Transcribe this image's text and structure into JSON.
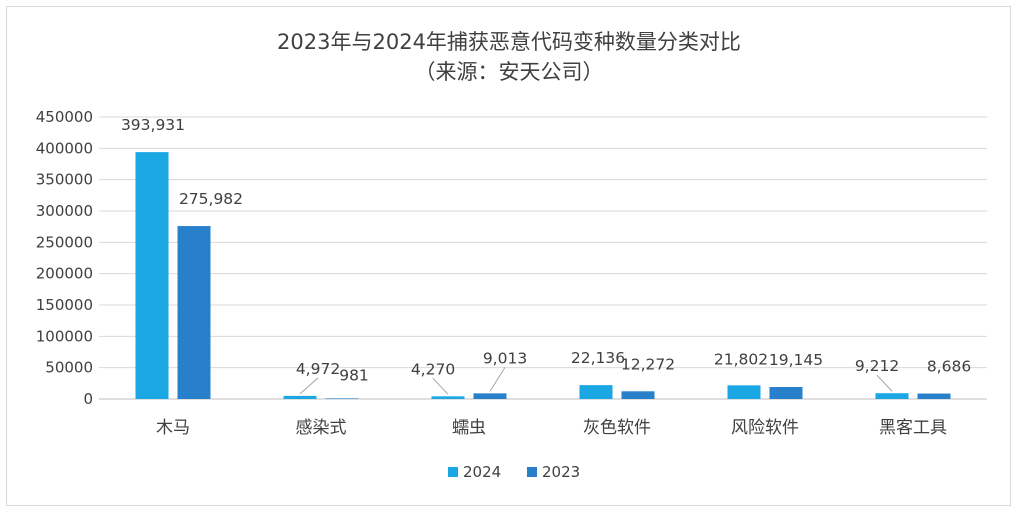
{
  "chart_data": {
    "type": "bar",
    "title": "2023年与2024年捕获恶意代码变种数量分类对比",
    "subtitle": "（来源：安天公司）",
    "categories": [
      "木马",
      "感染式",
      "蠕虫",
      "灰色软件",
      "风险软件",
      "黑客工具"
    ],
    "series": [
      {
        "name": "2024",
        "color": "#1aa7e4",
        "values": [
          393931,
          4972,
          4270,
          22136,
          21802,
          9212
        ]
      },
      {
        "name": "2023",
        "color": "#2880ca",
        "values": [
          275982,
          981,
          9013,
          12272,
          19145,
          8686
        ]
      }
    ],
    "data_labels": [
      [
        "393,931",
        "4,972",
        "4,270",
        "22,136",
        "21,802",
        "9,212"
      ],
      [
        "275,982",
        "981",
        "9,013",
        "12,272",
        "19,145",
        "8,686"
      ]
    ],
    "ylim": [
      0,
      450000
    ],
    "yticks": [
      "0",
      "50000",
      "100000",
      "150000",
      "200000",
      "250000",
      "300000",
      "350000",
      "400000",
      "450000"
    ],
    "xlabel": "",
    "ylabel": "",
    "grid": true,
    "legend_position": "bottom"
  }
}
